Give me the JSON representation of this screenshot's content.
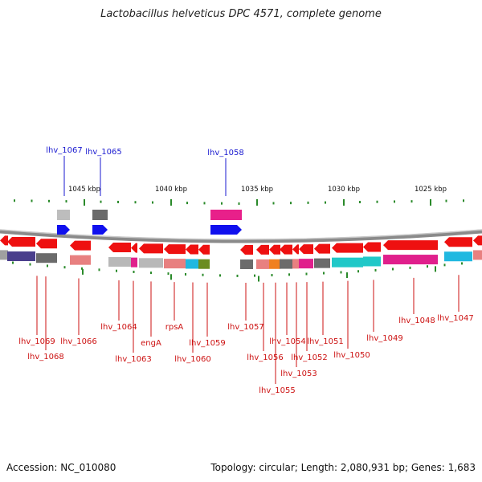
{
  "title": "Lactobacillus helveticus DPC 4571, complete genome",
  "footer": {
    "accession": "Accession: NC_010080",
    "topology": "Topology: circular; Length: 2,080,931 bp; Genes: 1,683"
  },
  "colors": {
    "forward_gene": "#1010ee",
    "reverse_gene": "#ee1010",
    "forward_label": "#1a1ad0",
    "reverse_label": "#cc1111",
    "backbone": "#8a8a8a",
    "tick": "#2a8a2a"
  },
  "scale": {
    "ticks": [
      {
        "label": "1045 kbp"
      },
      {
        "label": "1040 kbp"
      },
      {
        "label": "1035 kbp"
      },
      {
        "label": "1030 kbp"
      },
      {
        "label": "1025 kbp"
      }
    ]
  },
  "genes_top": [
    {
      "label": "lhv_1067"
    },
    {
      "label": "lhv_1065"
    },
    {
      "label": "lhv_1058"
    }
  ],
  "genes_bottom": [
    {
      "label": "lhv_1069"
    },
    {
      "label": "lhv_1068"
    },
    {
      "label": "lhv_1066"
    },
    {
      "label": "lhv_1064"
    },
    {
      "label": "lhv_1063"
    },
    {
      "label": "engA"
    },
    {
      "label": "rpsA"
    },
    {
      "label": "lhv_1060"
    },
    {
      "label": "lhv_1059"
    },
    {
      "label": "lhv_1057"
    },
    {
      "label": "lhv_1056"
    },
    {
      "label": "lhv_1055"
    },
    {
      "label": "lhv_1054"
    },
    {
      "label": "lhv_1053"
    },
    {
      "label": "lhv_1052"
    },
    {
      "label": "lhv_1051"
    },
    {
      "label": "lhv_1050"
    },
    {
      "label": "lhv_1049"
    },
    {
      "label": "lhv_1048"
    },
    {
      "label": "lhv_1047"
    }
  ]
}
